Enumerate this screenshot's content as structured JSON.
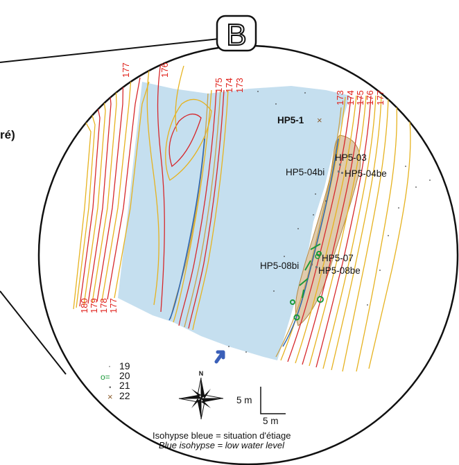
{
  "panel_letter": "B",
  "fragment_text": "ré)",
  "contour_labels_top": [
    "177",
    "176",
    "175",
    "174",
    "173"
  ],
  "contour_labels_right": [
    "173",
    "174",
    "175",
    "176",
    "177"
  ],
  "contour_labels_left": [
    "180",
    "179",
    "178",
    "177"
  ],
  "points": {
    "hp5_1": "HP5-1",
    "hp5_03": "HP5-03",
    "hp5_04bi": "HP5-04bi",
    "hp5_04be": "HP5-04be",
    "hp5_07": "HP5-07",
    "hp5_08bi": "HP5-08bi",
    "hp5_08be": "HP5-08be"
  },
  "legend": [
    {
      "symbol": "·",
      "label": "19",
      "color": "#333333"
    },
    {
      "symbol": "o=",
      "label": "20",
      "color": "#1b9a3a"
    },
    {
      "symbol": "▪",
      "label": "21",
      "color": "#777777"
    },
    {
      "symbol": "×",
      "label": "22",
      "color": "#8a5a2b"
    }
  ],
  "north_label": "N",
  "scale": {
    "vertical": "5 m",
    "horizontal": "5 m"
  },
  "caption": {
    "fr": "Isohypse bleue = situation d'étiage",
    "en": "Blue isohypse = low water level"
  },
  "colors": {
    "water": "#c5dfef",
    "contour_major": "#d6272b",
    "contour_minor": "#e6b21e",
    "contour_faint": "#c9a24a",
    "blue_isohypse": "#2c66b4",
    "bank": "#c7a06a",
    "arrow": "#3a5fb8"
  }
}
